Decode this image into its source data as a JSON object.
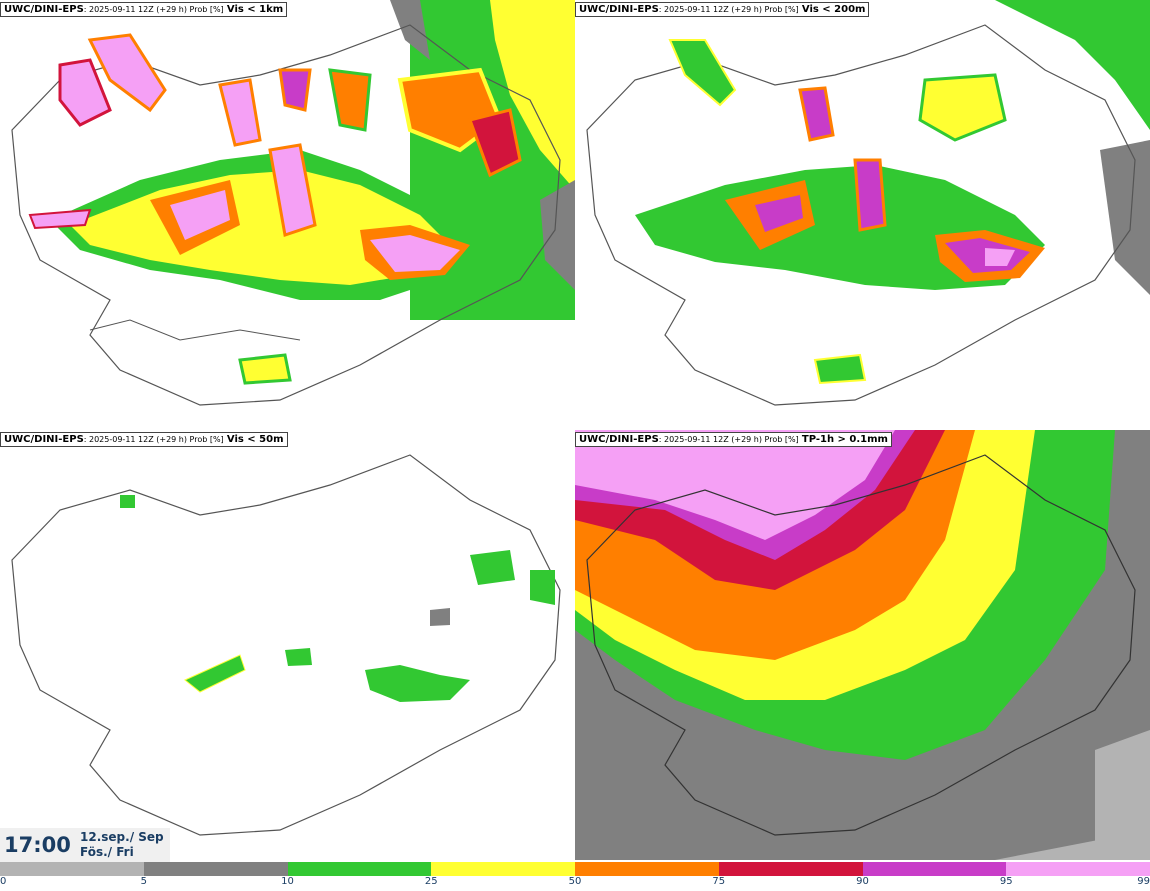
{
  "panels": [
    {
      "model": "UWC/DINI-EPS",
      "meta": ": 2025-09-11 12Z (+29 h) Prob [%]",
      "variable": "Vis < 1km"
    },
    {
      "model": "UWC/DINI-EPS",
      "meta": ": 2025-09-11 12Z (+29 h) Prob [%]",
      "variable": "Vis < 200m"
    },
    {
      "model": "UWC/DINI-EPS",
      "meta": ": 2025-09-11 12Z (+29 h) Prob [%]",
      "variable": "Vis < 50m"
    },
    {
      "model": "UWC/DINI-EPS",
      "meta": ": 2025-09-11 12Z (+29 h) Prob [%]",
      "variable": "TP-1h > 0.1mm"
    }
  ],
  "valid_time": {
    "time": "17:00",
    "date_line1": "12.sep./ Sep",
    "date_line2": "Fös./ Fri"
  },
  "colorbar": {
    "ticks": [
      "0",
      "5",
      "10",
      "25",
      "50",
      "75",
      "90",
      "95",
      "99"
    ],
    "colors": [
      "#ffffff",
      "#b3b3b3",
      "#808080",
      "#32c832",
      "#ffff32",
      "#ff7f00",
      "#d2143c",
      "#c83cc8",
      "#f5a0f5"
    ]
  }
}
